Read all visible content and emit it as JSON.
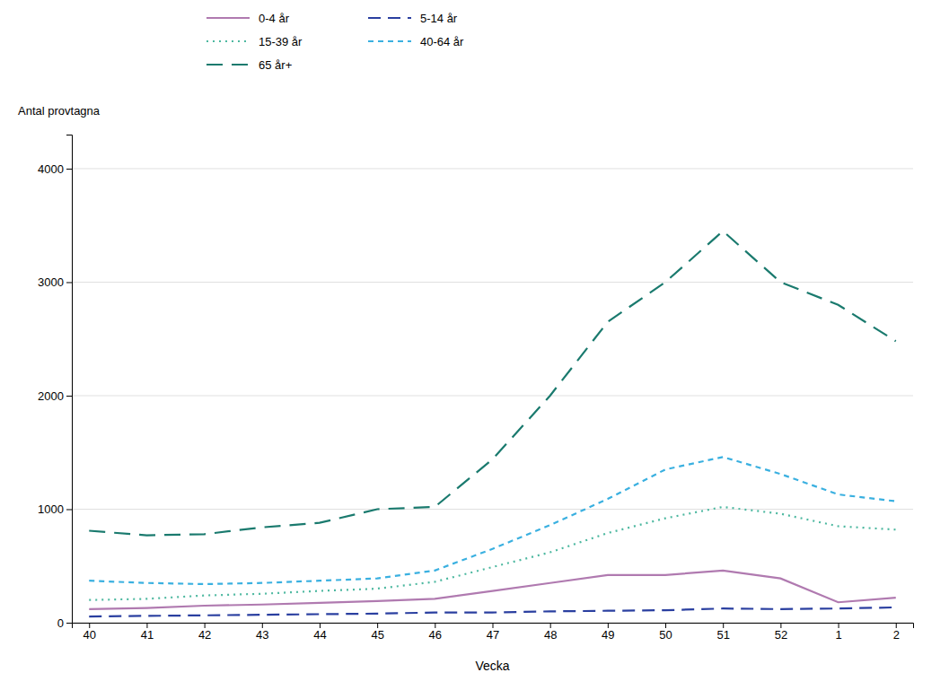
{
  "chart_data": {
    "type": "line",
    "xlabel": "Vecka",
    "ylabel": "Antal provtagna",
    "categories": [
      "40",
      "41",
      "42",
      "43",
      "44",
      "45",
      "46",
      "47",
      "48",
      "49",
      "50",
      "51",
      "52",
      "1",
      "2"
    ],
    "series": [
      {
        "name": "0-4 år",
        "color": "#b07ab0",
        "line_style": "solid",
        "values": [
          120,
          130,
          150,
          160,
          175,
          190,
          210,
          280,
          350,
          420,
          420,
          460,
          390,
          180,
          220
        ]
      },
      {
        "name": "5-14 år",
        "color": "#2a3fa0",
        "line_style": "dashed",
        "values": [
          55,
          60,
          65,
          70,
          75,
          80,
          90,
          90,
          100,
          105,
          110,
          125,
          120,
          125,
          135
        ]
      },
      {
        "name": "15-39 år",
        "color": "#4db8a0",
        "line_style": "dotted",
        "values": [
          200,
          210,
          240,
          255,
          280,
          300,
          360,
          490,
          620,
          790,
          920,
          1020,
          960,
          850,
          820
        ]
      },
      {
        "name": "40-64 år",
        "color": "#3ab0e0",
        "line_style": "short-dashed",
        "values": [
          370,
          350,
          340,
          350,
          370,
          390,
          460,
          650,
          860,
          1090,
          1350,
          1460,
          1310,
          1130,
          1070
        ]
      },
      {
        "name": "65 år+",
        "color": "#1a7a6e",
        "line_style": "long-dashed",
        "values": [
          810,
          770,
          780,
          840,
          880,
          1000,
          1020,
          1440,
          2000,
          2650,
          3000,
          3450,
          3000,
          2800,
          2480
        ]
      }
    ],
    "ylim": [
      0,
      4300
    ],
    "yticks": [
      0,
      1000,
      2000,
      3000,
      4000
    ],
    "grid": true,
    "legend": "top"
  }
}
